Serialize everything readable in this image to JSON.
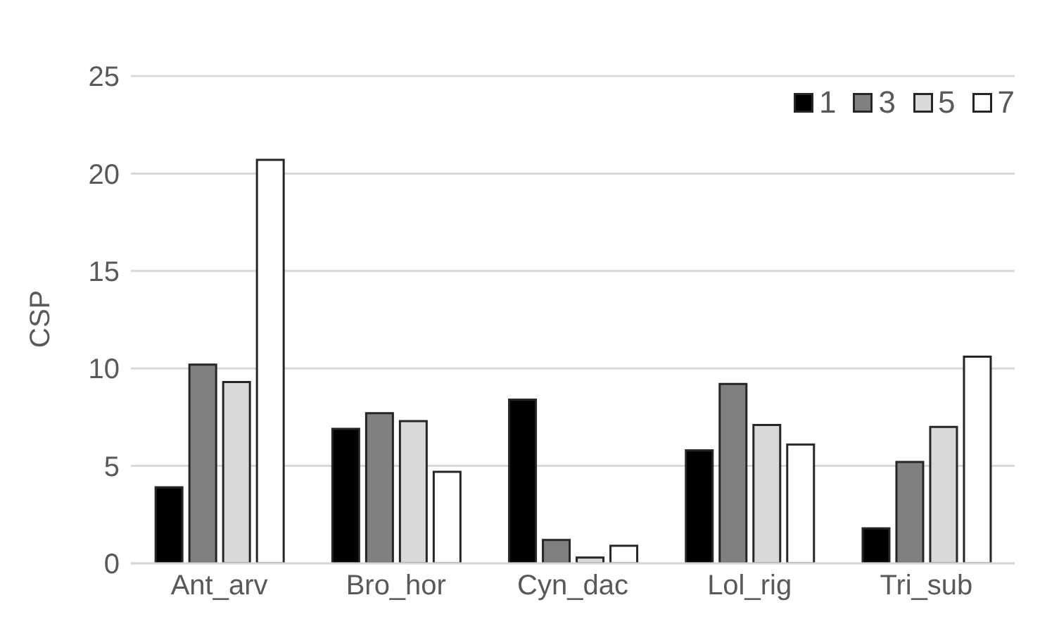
{
  "chart_data": {
    "type": "bar",
    "ylabel": "CSP",
    "categories": [
      "Ant_arv",
      "Bro_hor",
      "Cyn_dac",
      "Lol_rig",
      "Tri_sub"
    ],
    "series": [
      {
        "name": "1",
        "color": "#000000",
        "values": [
          3.9,
          6.9,
          8.4,
          5.8,
          1.8
        ]
      },
      {
        "name": "3",
        "color": "#808080",
        "values": [
          10.2,
          7.7,
          1.2,
          9.2,
          5.2
        ]
      },
      {
        "name": "5",
        "color": "#d9d9d9",
        "values": [
          9.3,
          7.3,
          0.3,
          7.1,
          7.0
        ]
      },
      {
        "name": "7",
        "color": "#ffffff",
        "values": [
          20.7,
          4.7,
          0.9,
          6.1,
          10.6
        ]
      }
    ],
    "ylim": [
      0,
      25
    ],
    "yticks": [
      0,
      5,
      10,
      15,
      20,
      25
    ],
    "grid": "y",
    "legend": "top right"
  }
}
